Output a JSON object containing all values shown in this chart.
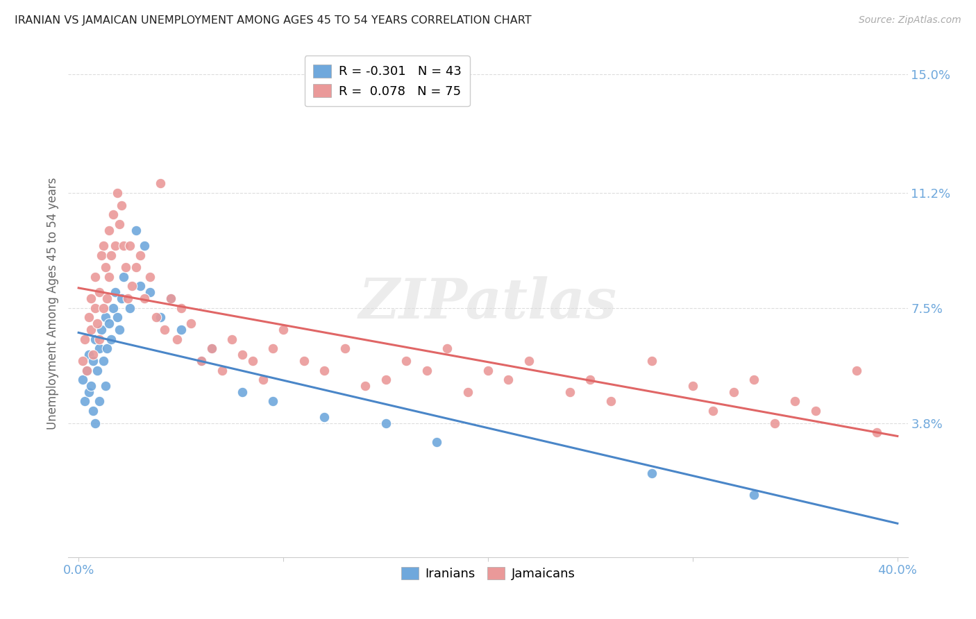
{
  "title": "IRANIAN VS JAMAICAN UNEMPLOYMENT AMONG AGES 45 TO 54 YEARS CORRELATION CHART",
  "source": "Source: ZipAtlas.com",
  "ylabel": "Unemployment Among Ages 45 to 54 years",
  "color_iranian": "#6fa8dc",
  "color_jamaican": "#ea9999",
  "color_line_iranian": "#4a86c8",
  "color_line_jamaican": "#e06666",
  "watermark_text": "ZIPatlas",
  "legend_r_iranian": "R = -0.301",
  "legend_n_iranian": "N = 43",
  "legend_r_jamaican": "R =  0.078",
  "legend_n_jamaican": "N = 75",
  "legend_label_iranian": "Iranians",
  "legend_label_jamaican": "Jamaicans",
  "background_color": "#ffffff",
  "grid_color": "#dddddd",
  "tick_color_x": "#6fa8dc",
  "tick_color_y": "#6fa8dc",
  "iranian_x": [
    0.002,
    0.003,
    0.004,
    0.005,
    0.005,
    0.006,
    0.007,
    0.007,
    0.008,
    0.008,
    0.009,
    0.01,
    0.01,
    0.011,
    0.012,
    0.013,
    0.013,
    0.014,
    0.015,
    0.016,
    0.017,
    0.018,
    0.019,
    0.02,
    0.021,
    0.022,
    0.025,
    0.028,
    0.03,
    0.032,
    0.035,
    0.04,
    0.045,
    0.05,
    0.06,
    0.065,
    0.08,
    0.095,
    0.12,
    0.15,
    0.175,
    0.28,
    0.33
  ],
  "iranian_y": [
    0.052,
    0.045,
    0.055,
    0.048,
    0.06,
    0.05,
    0.058,
    0.042,
    0.065,
    0.038,
    0.055,
    0.062,
    0.045,
    0.068,
    0.058,
    0.072,
    0.05,
    0.062,
    0.07,
    0.065,
    0.075,
    0.08,
    0.072,
    0.068,
    0.078,
    0.085,
    0.075,
    0.1,
    0.082,
    0.095,
    0.08,
    0.072,
    0.078,
    0.068,
    0.058,
    0.062,
    0.048,
    0.045,
    0.04,
    0.038,
    0.032,
    0.022,
    0.015
  ],
  "jamaican_x": [
    0.002,
    0.003,
    0.004,
    0.005,
    0.006,
    0.006,
    0.007,
    0.008,
    0.008,
    0.009,
    0.01,
    0.01,
    0.011,
    0.012,
    0.012,
    0.013,
    0.014,
    0.015,
    0.015,
    0.016,
    0.017,
    0.018,
    0.019,
    0.02,
    0.021,
    0.022,
    0.023,
    0.024,
    0.025,
    0.026,
    0.028,
    0.03,
    0.032,
    0.035,
    0.038,
    0.04,
    0.042,
    0.045,
    0.048,
    0.05,
    0.055,
    0.06,
    0.065,
    0.07,
    0.075,
    0.08,
    0.085,
    0.09,
    0.095,
    0.1,
    0.11,
    0.12,
    0.13,
    0.14,
    0.15,
    0.16,
    0.17,
    0.18,
    0.19,
    0.2,
    0.21,
    0.22,
    0.24,
    0.25,
    0.26,
    0.28,
    0.3,
    0.31,
    0.32,
    0.33,
    0.34,
    0.35,
    0.36,
    0.38,
    0.39
  ],
  "jamaican_y": [
    0.058,
    0.065,
    0.055,
    0.072,
    0.068,
    0.078,
    0.06,
    0.075,
    0.085,
    0.07,
    0.08,
    0.065,
    0.092,
    0.075,
    0.095,
    0.088,
    0.078,
    0.085,
    0.1,
    0.092,
    0.105,
    0.095,
    0.112,
    0.102,
    0.108,
    0.095,
    0.088,
    0.078,
    0.095,
    0.082,
    0.088,
    0.092,
    0.078,
    0.085,
    0.072,
    0.115,
    0.068,
    0.078,
    0.065,
    0.075,
    0.07,
    0.058,
    0.062,
    0.055,
    0.065,
    0.06,
    0.058,
    0.052,
    0.062,
    0.068,
    0.058,
    0.055,
    0.062,
    0.05,
    0.052,
    0.058,
    0.055,
    0.062,
    0.048,
    0.055,
    0.052,
    0.058,
    0.048,
    0.052,
    0.045,
    0.058,
    0.05,
    0.042,
    0.048,
    0.052,
    0.038,
    0.045,
    0.042,
    0.055,
    0.035
  ],
  "xlim": [
    -0.005,
    0.405
  ],
  "ylim": [
    -0.005,
    0.158
  ],
  "ytick_vals": [
    0.038,
    0.075,
    0.112,
    0.15
  ],
  "ytick_labels": [
    "3.8%",
    "7.5%",
    "11.2%",
    "15.0%"
  ],
  "xtick_vals": [
    0.0,
    0.1,
    0.2,
    0.3,
    0.4
  ],
  "xtick_labels": [
    "0.0%",
    "",
    "",
    "",
    "40.0%"
  ]
}
